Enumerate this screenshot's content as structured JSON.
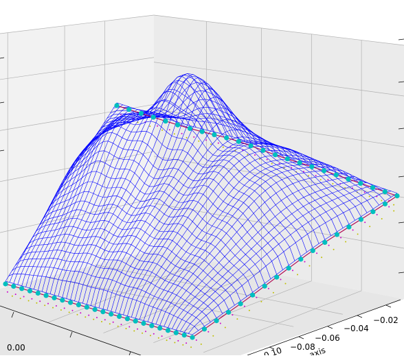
{
  "chart_data": {
    "type": "3d-wireframe",
    "title": "",
    "colors": {
      "wireframe": "#0000ff",
      "boundary_line": "#b0004c",
      "boundary_markers": "#00bfbf",
      "dotted_magenta": "#cc00cc",
      "dotted_yellow": "#bfbf00",
      "pane_left": "#f2f2f2",
      "pane_back": "#ebebeb",
      "grid": "#b0b0b0"
    },
    "x_axis": {
      "label": "",
      "ticks": [
        "0.00"
      ]
    },
    "y_axis": {
      "label": "axis",
      "ticks": [
        "0.10",
        "−0.08",
        "−0.06",
        "−0.04",
        "−0.02"
      ]
    },
    "z_axis": {
      "label": "",
      "ticks": []
    },
    "grid": true,
    "series": [
      {
        "kind": "wireframe surface"
      },
      {
        "kind": "boundary line with circle markers"
      },
      {
        "kind": "dotted projection"
      },
      {
        "kind": "dotted projection"
      }
    ]
  }
}
